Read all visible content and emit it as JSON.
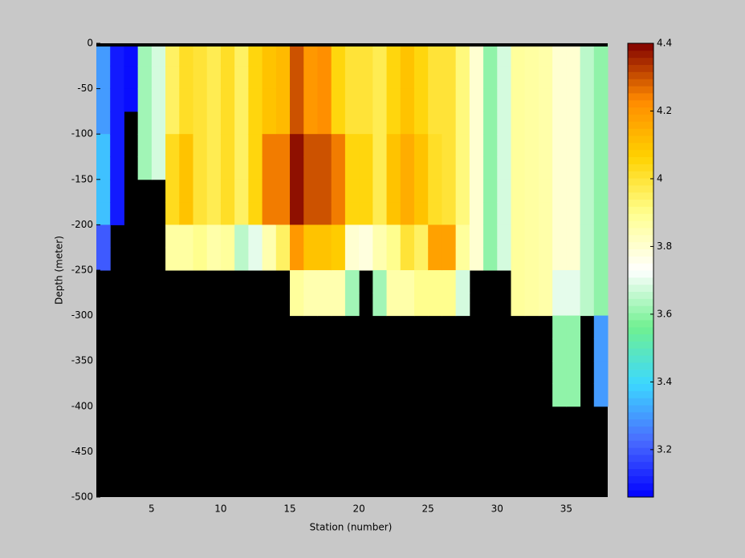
{
  "chart_data": {
    "type": "heatmap",
    "xlabel": "Station (number)",
    "ylabel": "Depth (meter)",
    "x": [
      1,
      2,
      3,
      4,
      5,
      6,
      7,
      8,
      9,
      10,
      11,
      12,
      13,
      14,
      15,
      16,
      17,
      18,
      19,
      20,
      21,
      22,
      23,
      24,
      25,
      26,
      27,
      28,
      29,
      30,
      31,
      32,
      33,
      34,
      35,
      36,
      37,
      38
    ],
    "y": [
      0,
      -25,
      -50,
      -75,
      -100,
      -125,
      -150,
      -175,
      -200,
      -225,
      -250,
      -275,
      -300,
      -325,
      -350,
      -375,
      -400,
      -425,
      -450,
      -475,
      -500
    ],
    "xlim": [
      1,
      38
    ],
    "ylim": [
      -500,
      0
    ],
    "xticks": [
      5,
      10,
      15,
      20,
      25,
      30,
      35
    ],
    "yticks": [
      0,
      -50,
      -100,
      -150,
      -200,
      -250,
      -300,
      -350,
      -400,
      -450,
      -500
    ],
    "clim": [
      3.06,
      4.4
    ],
    "cticks": [
      3.2,
      3.4,
      3.6,
      3.8,
      4,
      4.2,
      4.4
    ],
    "colormap": [
      "#0000ff",
      "#4a6cff",
      "#3cd8ff",
      "#70f090",
      "#ffffff",
      "#ffff90",
      "#ffd200",
      "#ff8a00",
      "#800000"
    ],
    "background": "#000000",
    "z": [
      [
        3.3,
        3.3,
        3.3,
        3.3,
        3.36,
        3.36,
        3.36,
        3.36,
        3.2,
        3.2,
        null,
        null,
        null,
        null,
        null,
        null,
        null,
        null,
        null,
        null
      ],
      [
        3.1,
        3.1,
        3.1,
        3.1,
        3.1,
        3.1,
        3.1,
        3.1,
        null,
        null,
        null,
        null,
        null,
        null,
        null,
        null,
        null,
        null,
        null,
        null
      ],
      [
        3.08,
        3.08,
        3.08,
        null,
        null,
        null,
        null,
        null,
        null,
        null,
        null,
        null,
        null,
        null,
        null,
        null,
        null,
        null,
        null,
        null
      ],
      [
        3.62,
        3.62,
        3.62,
        3.62,
        3.62,
        3.62,
        null,
        null,
        null,
        null,
        null,
        null,
        null,
        null,
        null,
        null,
        null,
        null,
        null,
        null
      ],
      [
        3.68,
        3.68,
        3.68,
        3.68,
        3.68,
        3.68,
        null,
        null,
        null,
        null,
        null,
        null,
        null,
        null,
        null,
        null,
        null,
        null,
        null,
        null
      ],
      [
        3.95,
        3.95,
        3.95,
        3.95,
        4.03,
        4.03,
        4.03,
        4.03,
        3.87,
        3.87,
        null,
        null,
        null,
        null,
        null,
        null,
        null,
        null,
        null,
        null
      ],
      [
        4.02,
        4.02,
        4.02,
        4.02,
        4.1,
        4.1,
        4.1,
        4.1,
        3.87,
        3.87,
        null,
        null,
        null,
        null,
        null,
        null,
        null,
        null,
        null,
        null
      ],
      [
        4.0,
        4.0,
        4.0,
        4.0,
        4.0,
        4.0,
        4.0,
        4.0,
        3.9,
        3.9,
        null,
        null,
        null,
        null,
        null,
        null,
        null,
        null,
        null,
        null
      ],
      [
        3.97,
        3.97,
        3.97,
        3.97,
        3.97,
        3.97,
        3.97,
        3.97,
        3.86,
        3.86,
        null,
        null,
        null,
        null,
        null,
        null,
        null,
        null,
        null,
        null
      ],
      [
        4.02,
        4.02,
        4.02,
        4.02,
        4.02,
        4.02,
        4.02,
        4.02,
        3.88,
        3.88,
        null,
        null,
        null,
        null,
        null,
        null,
        null,
        null,
        null,
        null
      ],
      [
        3.95,
        3.95,
        3.95,
        3.95,
        3.95,
        3.95,
        3.95,
        3.95,
        3.65,
        3.65,
        null,
        null,
        null,
        null,
        null,
        null,
        null,
        null,
        null,
        null
      ],
      [
        4.05,
        4.05,
        4.05,
        4.05,
        4.05,
        4.05,
        4.05,
        4.05,
        3.7,
        3.7,
        null,
        null,
        null,
        null,
        null,
        null,
        null,
        null,
        null,
        null
      ],
      [
        4.1,
        4.1,
        4.1,
        4.1,
        4.25,
        4.25,
        4.25,
        4.25,
        3.85,
        3.85,
        null,
        null,
        null,
        null,
        null,
        null,
        null,
        null,
        null,
        null
      ],
      [
        4.12,
        4.12,
        4.12,
        4.12,
        4.25,
        4.25,
        4.25,
        4.25,
        3.95,
        3.95,
        null,
        null,
        null,
        null,
        null,
        null,
        null,
        null,
        null,
        null
      ],
      [
        4.3,
        4.3,
        4.3,
        4.3,
        4.38,
        4.38,
        4.38,
        4.38,
        4.2,
        4.2,
        3.88,
        3.88,
        null,
        null,
        null,
        null,
        null,
        null,
        null,
        null
      ],
      [
        4.2,
        4.2,
        4.2,
        4.2,
        4.3,
        4.3,
        4.3,
        4.3,
        4.1,
        4.1,
        3.85,
        3.85,
        null,
        null,
        null,
        null,
        null,
        null,
        null,
        null
      ],
      [
        4.22,
        4.22,
        4.22,
        4.22,
        4.3,
        4.3,
        4.3,
        4.3,
        4.1,
        4.1,
        3.85,
        3.85,
        null,
        null,
        null,
        null,
        null,
        null,
        null,
        null
      ],
      [
        4.05,
        4.05,
        4.05,
        4.05,
        4.25,
        4.25,
        4.25,
        4.25,
        4.08,
        4.08,
        3.85,
        3.85,
        null,
        null,
        null,
        null,
        null,
        null,
        null,
        null
      ],
      [
        4.0,
        4.0,
        4.0,
        4.0,
        4.05,
        4.05,
        4.05,
        4.05,
        3.8,
        3.8,
        3.62,
        3.62,
        null,
        null,
        null,
        null,
        null,
        null,
        null,
        null
      ],
      [
        4.0,
        4.0,
        4.0,
        4.0,
        4.05,
        4.05,
        4.05,
        4.05,
        3.78,
        3.78,
        null,
        null,
        null,
        null,
        null,
        null,
        null,
        null,
        null,
        null
      ],
      [
        3.97,
        3.97,
        3.97,
        3.97,
        3.97,
        3.97,
        3.97,
        3.97,
        3.85,
        3.85,
        3.62,
        3.62,
        null,
        null,
        null,
        null,
        null,
        null,
        null,
        null
      ],
      [
        4.05,
        4.05,
        4.05,
        4.05,
        4.1,
        4.1,
        4.1,
        4.1,
        3.9,
        3.9,
        3.86,
        3.86,
        null,
        null,
        null,
        null,
        null,
        null,
        null,
        null
      ],
      [
        4.1,
        4.1,
        4.1,
        4.1,
        4.15,
        4.15,
        4.15,
        4.15,
        4.0,
        4.0,
        3.86,
        3.86,
        null,
        null,
        null,
        null,
        null,
        null,
        null,
        null
      ],
      [
        4.05,
        4.05,
        4.05,
        4.05,
        4.1,
        4.1,
        4.1,
        4.1,
        3.95,
        3.95,
        3.9,
        3.9,
        null,
        null,
        null,
        null,
        null,
        null,
        null,
        null
      ],
      [
        4.0,
        4.0,
        4.0,
        4.0,
        4.02,
        4.02,
        4.02,
        4.02,
        4.18,
        4.18,
        3.9,
        3.9,
        null,
        null,
        null,
        null,
        null,
        null,
        null,
        null
      ],
      [
        4.0,
        4.0,
        4.0,
        4.0,
        4.0,
        4.0,
        4.0,
        4.0,
        4.18,
        4.18,
        3.9,
        3.9,
        null,
        null,
        null,
        null,
        null,
        null,
        null,
        null
      ],
      [
        3.92,
        3.92,
        3.92,
        3.92,
        3.92,
        3.92,
        3.92,
        3.92,
        3.88,
        3.88,
        3.68,
        3.68,
        null,
        null,
        null,
        null,
        null,
        null,
        null,
        null
      ],
      [
        3.8,
        3.8,
        3.8,
        3.8,
        3.8,
        3.8,
        3.8,
        3.8,
        3.8,
        3.8,
        null,
        null,
        null,
        null,
        null,
        null,
        null,
        null,
        null,
        null
      ],
      [
        3.6,
        3.6,
        3.6,
        3.6,
        3.6,
        3.6,
        3.6,
        3.6,
        3.6,
        3.6,
        null,
        null,
        null,
        null,
        null,
        null,
        null,
        null,
        null,
        null
      ],
      [
        3.68,
        3.68,
        3.68,
        3.68,
        3.68,
        3.68,
        3.68,
        3.68,
        3.68,
        3.68,
        null,
        null,
        null,
        null,
        null,
        null,
        null,
        null,
        null,
        null
      ],
      [
        3.88,
        3.88,
        3.88,
        3.88,
        3.88,
        3.88,
        3.88,
        3.88,
        3.88,
        3.88,
        3.88,
        3.88,
        null,
        null,
        null,
        null,
        null,
        null,
        null,
        null
      ],
      [
        3.87,
        3.87,
        3.87,
        3.87,
        3.87,
        3.87,
        3.87,
        3.87,
        3.87,
        3.87,
        3.87,
        3.87,
        null,
        null,
        null,
        null,
        null,
        null,
        null,
        null
      ],
      [
        3.86,
        3.86,
        3.86,
        3.86,
        3.86,
        3.86,
        3.86,
        3.86,
        3.86,
        3.86,
        3.86,
        3.86,
        null,
        null,
        null,
        null,
        null,
        null,
        null,
        null
      ],
      [
        3.8,
        3.8,
        3.8,
        3.8,
        3.8,
        3.8,
        3.8,
        3.8,
        3.8,
        3.8,
        3.7,
        3.7,
        3.6,
        3.6,
        3.6,
        3.6,
        null,
        null,
        null,
        null
      ],
      [
        3.8,
        3.8,
        3.8,
        3.8,
        3.8,
        3.8,
        3.8,
        3.8,
        3.8,
        3.8,
        3.7,
        3.7,
        3.6,
        3.6,
        3.6,
        3.6,
        null,
        null,
        null,
        null
      ],
      [
        3.65,
        3.65,
        3.65,
        3.65,
        3.65,
        3.65,
        3.65,
        3.65,
        3.65,
        3.65,
        3.65,
        3.65,
        null,
        null,
        null,
        null,
        null,
        null,
        null,
        null
      ],
      [
        3.6,
        3.6,
        3.6,
        3.6,
        3.6,
        3.6,
        3.6,
        3.6,
        3.6,
        3.6,
        3.6,
        3.6,
        3.3,
        3.3,
        3.3,
        3.3,
        null,
        null,
        null,
        null
      ]
    ]
  }
}
